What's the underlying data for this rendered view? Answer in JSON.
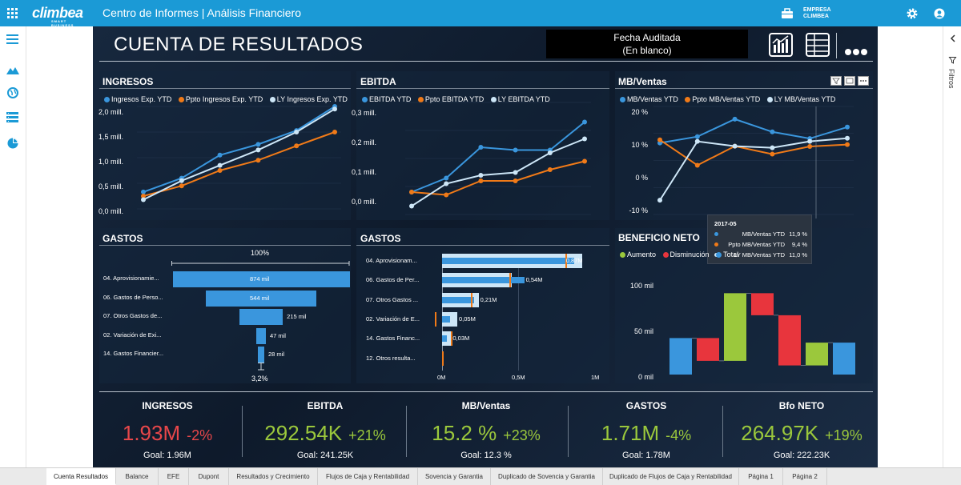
{
  "app": {
    "logo": "climbea",
    "logo_tagline": "SMART BUSINESS",
    "title": "Centro de Informes | Análisis Financiero",
    "company_line1": "EMPRESA",
    "company_line2": "CLIMBEA"
  },
  "report": {
    "title": "CUENTA DE RESULTADOS",
    "fecha_label": "Fecha Auditada",
    "fecha_value": "(En blanco)"
  },
  "filtros": "Filtros",
  "ingresos": {
    "title": "INGRESOS",
    "legend": [
      "Ingresos Exp. YTD",
      "Ppto Ingresos Exp. YTD",
      "LY Ingresos Exp. YTD"
    ],
    "yticks": [
      "2,0 mill.",
      "1,5 mill.",
      "1,0 mill.",
      "0,5 mill.",
      "0,0 mill."
    ]
  },
  "ebitda": {
    "title": "EBITDA",
    "legend": [
      "EBITDA YTD",
      "Ppto EBITDA YTD",
      "LY EBITDA YTD"
    ],
    "yticks": [
      "0,3 mill.",
      "0,2 mill.",
      "0,1 mill.",
      "0,0 mill."
    ]
  },
  "mbventas": {
    "title": "MB/Ventas",
    "legend": [
      "MB/Ventas YTD",
      "Ppto MB/Ventas YTD",
      "LY MB/Ventas YTD"
    ],
    "yticks": [
      "20 %",
      "10 %",
      "0 %",
      "-10 %"
    ],
    "tooltip": {
      "period": "2017-05",
      "rows": [
        {
          "label": "MB/Ventas YTD",
          "value": "11,9 %"
        },
        {
          "label": "Ppto MB/Ventas YTD",
          "value": "9,4 %"
        },
        {
          "label": "LY MB/Ventas YTD",
          "value": "11,0 %"
        }
      ]
    }
  },
  "gastos_funnel": {
    "title": "GASTOS",
    "top_pct": "100%",
    "bottom_pct": "3,2%",
    "items": [
      {
        "label": "04. Aprovisionamie...",
        "value": "874 mil",
        "amount": 874
      },
      {
        "label": "06. Gastos de Perso...",
        "value": "544 mil",
        "amount": 544
      },
      {
        "label": "07. Otros Gastos de...",
        "value": "215 mil",
        "amount": 215
      },
      {
        "label": "02. Variación de Exi...",
        "value": "47 mil",
        "amount": 47
      },
      {
        "label": "14. Gastos Financier...",
        "value": "28 mil",
        "amount": 28
      }
    ]
  },
  "gastos_bar": {
    "title": "GASTOS",
    "xticks": [
      "0M",
      "0,5M",
      "1M"
    ],
    "items": [
      {
        "label": "04. Aprovisionam...",
        "value": "0,87M",
        "actual": 0.87,
        "ly": 0.92,
        "ppto": 0.81
      },
      {
        "label": "06. Gastos de Per...",
        "value": "0,54M",
        "actual": 0.54,
        "ly": 0.46,
        "ppto": 0.44
      },
      {
        "label": "07. Otros Gastos ...",
        "value": "0,21M",
        "actual": 0.21,
        "ly": 0.24,
        "ppto": 0.19
      },
      {
        "label": "02. Variación de E...",
        "value": "0,05M",
        "actual": 0.05,
        "ly": 0.1,
        "ppto": -0.05
      },
      {
        "label": "14. Gastos Financ...",
        "value": "0,03M",
        "actual": 0.03,
        "ly": 0.06,
        "ppto": 0.06
      },
      {
        "label": "12. Otros resulta...",
        "value": "",
        "actual": 0.01,
        "ly": 0.0,
        "ppto": 0.0
      }
    ]
  },
  "beneficio": {
    "title": "BENEFICIO NETO",
    "legend": [
      "Aumento",
      "Disminución",
      "Total"
    ],
    "yticks": [
      "100 mil",
      "50 mil",
      "0 mil"
    ]
  },
  "kpis": [
    {
      "title": "INGRESOS",
      "value": "1.93M",
      "change": "-2%",
      "goal": "Goal: 1.96M",
      "color": "#e8474a"
    },
    {
      "title": "EBITDA",
      "value": "292.54K",
      "change": "+21%",
      "goal": "Goal: 241.25K",
      "color": "#9bc83c"
    },
    {
      "title": "MB/Ventas",
      "value": "15.2 %",
      "change": "+23%",
      "goal": "Goal: 12.3 %",
      "color": "#9bc83c"
    },
    {
      "title": "GASTOS",
      "value": "1.71M",
      "change": "-4%",
      "goal": "Goal: 1.78M",
      "color": "#9bc83c"
    },
    {
      "title": "Bfo NETO",
      "value": "264.97K",
      "change": "+19%",
      "goal": "Goal: 222.23K",
      "color": "#9bc83c"
    }
  ],
  "tabs": [
    "Cuenta Resultados",
    "Balance",
    "EFE",
    "Dupont",
    "Resultados y Crecimiento",
    "Flujos de Caja y Rentabilidad",
    "Sovencia y Garantia",
    "Duplicado de Sovencia y Garantia",
    "Duplicado de Flujos de Caja y Rentabilidad",
    "Página 1",
    "Página 2"
  ],
  "colors": {
    "actual": "#3a96dd",
    "ppto": "#f07a18",
    "ly": "#cde6f7",
    "aumento": "#9bc83c",
    "disminucion": "#e8353d",
    "total": "#3a96dd"
  },
  "chart_data": [
    {
      "type": "line",
      "title": "INGRESOS",
      "ylim": [
        0,
        2000000
      ],
      "series": [
        {
          "name": "Ingresos Exp. YTD",
          "values": [
            330000,
            600000,
            1050000,
            1260000,
            1530000,
            2000000
          ]
        },
        {
          "name": "Ppto Ingresos Exp. YTD",
          "values": [
            250000,
            450000,
            750000,
            950000,
            1230000,
            1500000
          ]
        },
        {
          "name": "LY Ingresos Exp. YTD",
          "values": [
            180000,
            550000,
            850000,
            1150000,
            1500000,
            1950000
          ]
        }
      ]
    },
    {
      "type": "line",
      "title": "EBITDA",
      "ylim": [
        -0.05,
        0.35
      ],
      "series": [
        {
          "name": "EBITDA YTD",
          "values": [
            0.03,
            0.08,
            0.19,
            0.18,
            0.18,
            0.28
          ]
        },
        {
          "name": "Ppto EBITDA YTD",
          "values": [
            0.03,
            0.02,
            0.07,
            0.07,
            0.11,
            0.14
          ]
        },
        {
          "name": "LY EBITDA YTD",
          "values": [
            -0.02,
            0.06,
            0.09,
            0.1,
            0.17,
            0.22
          ]
        }
      ]
    },
    {
      "type": "line",
      "title": "MB/Ventas",
      "ylim": [
        -12,
        22
      ],
      "series": [
        {
          "name": "MB/Ventas YTD",
          "values": [
            10.5,
            12.5,
            18,
            14,
            11.9,
            15.5
          ]
        },
        {
          "name": "Ppto MB/Ventas YTD",
          "values": [
            11.5,
            3.5,
            9.5,
            7,
            9.4,
            10
          ]
        },
        {
          "name": "LY MB/Ventas YTD",
          "values": [
            -7.5,
            11,
            9.5,
            9,
            11,
            12
          ]
        }
      ]
    },
    {
      "type": "bar",
      "title": "BENEFICIO NETO",
      "ylim": [
        0,
        120
      ],
      "categories": [
        "1",
        "2",
        "3",
        "4",
        "5",
        "6",
        "7"
      ],
      "bars": [
        {
          "kind": "total",
          "from": 0,
          "to": 48
        },
        {
          "kind": "disminucion",
          "from": 48,
          "to": 18
        },
        {
          "kind": "aumento",
          "from": 18,
          "to": 107
        },
        {
          "kind": "disminucion",
          "from": 107,
          "to": 78
        },
        {
          "kind": "disminucion",
          "from": 78,
          "to": 12
        },
        {
          "kind": "aumento",
          "from": 12,
          "to": 42
        },
        {
          "kind": "total",
          "from": 0,
          "to": 42
        }
      ]
    }
  ]
}
